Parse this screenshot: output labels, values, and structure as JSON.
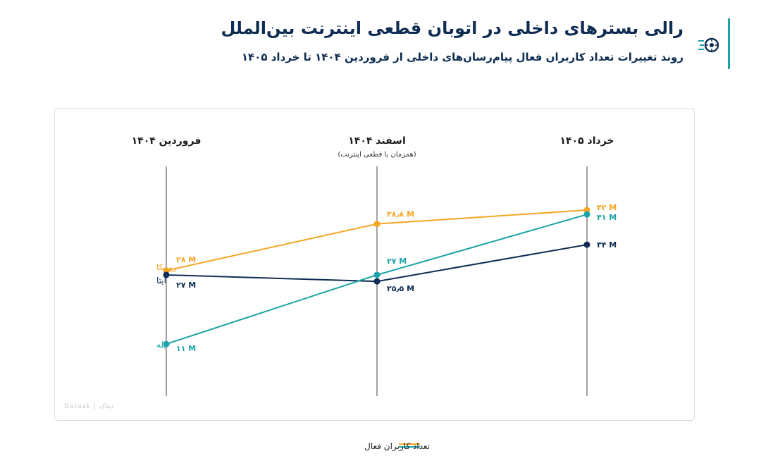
{
  "header": {
    "title": "رالی بسترهای داخلی در اتوبان قطعی اینترنت بین‌الملل",
    "subtitle": "روند تغییرات تعداد کاربران فعال پیام‌رسان‌های داخلی از فروردین ۱۴۰۴ تا خرداد ۱۴۰۵",
    "logo_icon": "rocket-wheel-icon",
    "accent_color": "#1aa3a8"
  },
  "chart_data": {
    "type": "line",
    "categories": [
      "فروردین ۱۴۰۴",
      "اسفند ۱۴۰۴",
      "خرداد ۱۴۰۵"
    ],
    "category_notes": [
      "",
      "(همزمان با قطعی اینترنت)",
      ""
    ],
    "ylabel": "",
    "unit": "M",
    "series": [
      {
        "name": "روبیکا",
        "color": "#f5a623",
        "values": [
          28,
          38.8,
          42
        ],
        "value_labels": [
          "۲۸ M",
          "۳۸٫۸ M",
          "۴۲ M"
        ]
      },
      {
        "name": "ایتا",
        "color": "#0f2d52",
        "values": [
          27,
          25.5,
          34
        ],
        "value_labels": [
          "۲۷ M",
          "۲۵٫۵ M",
          "۳۴ M"
        ]
      },
      {
        "name": "بله",
        "color": "#1aa3a8",
        "values": [
          11,
          27,
          41
        ],
        "value_labels": [
          "۱۱ M",
          "۲۷ M",
          "۴۱ M"
        ]
      }
    ],
    "legend": {
      "label": "تعداد کاربران فعال",
      "placement": "bottom-center"
    },
    "grid": false
  },
  "watermark": "Dataak | دیتاک"
}
